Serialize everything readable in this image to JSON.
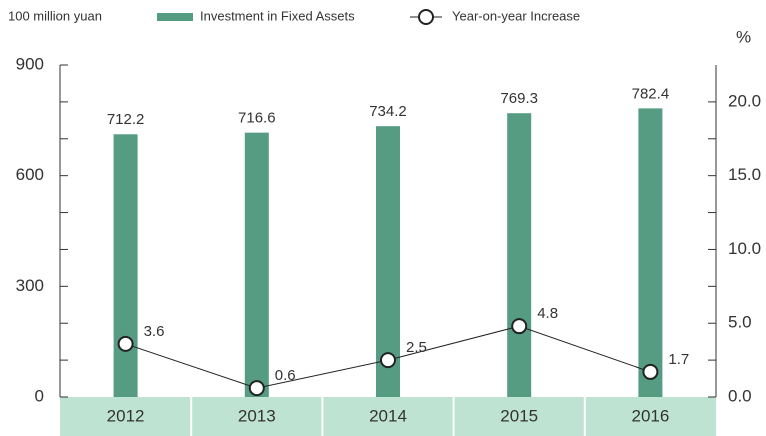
{
  "chart_data": {
    "type": "bar",
    "y_axis_label": "100 million yuan",
    "y2_axis_label": "%",
    "categories": [
      "2012",
      "2013",
      "2014",
      "2015",
      "2016"
    ],
    "series": [
      {
        "name": "Investment in Fixed Assets",
        "type": "bar",
        "color": "#559c83",
        "values": [
          712.2,
          716.6,
          734.2,
          769.3,
          782.4
        ]
      },
      {
        "name": "Year-on-year Increase",
        "type": "line",
        "axis": "y2",
        "color": "#222222",
        "values": [
          3.6,
          0.6,
          2.5,
          4.8,
          1.7
        ]
      }
    ],
    "ylim": [
      0,
      900
    ],
    "yticks": [
      0,
      300,
      600,
      900
    ],
    "y_minor_ticks": [
      100,
      200,
      400,
      500,
      700,
      800
    ],
    "y2lim": [
      0,
      22.5
    ],
    "y2ticks": [
      {
        "value": 0,
        "label": "0.0"
      },
      {
        "value": 5,
        "label": "5.0"
      },
      {
        "value": 10,
        "label": "10.0"
      },
      {
        "value": 15,
        "label": "15.0"
      },
      {
        "value": 20,
        "label": "20.0"
      }
    ],
    "y2_minor_ticks": [
      2.5,
      7.5,
      12.5,
      17.5
    ],
    "category_band_color": "#bfe3d3"
  }
}
